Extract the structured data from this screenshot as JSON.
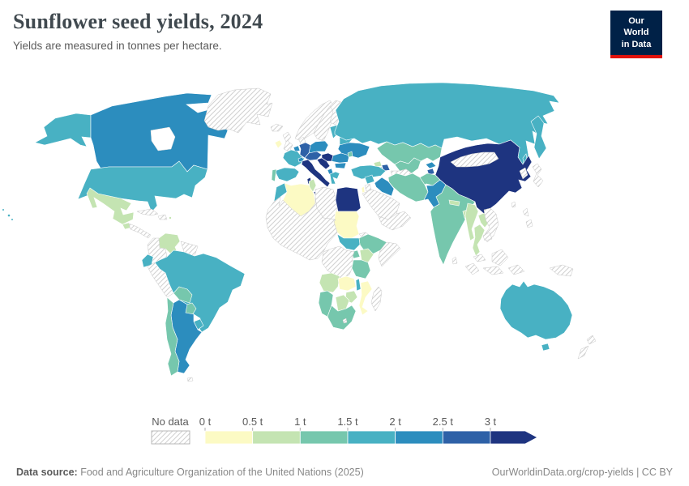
{
  "header": {
    "title": "Sunflower seed yields, 2024",
    "subtitle": "Yields are measured in tonnes per hectare.",
    "logo": {
      "line1": "Our World",
      "line2": "in Data",
      "bg_color": "#002147",
      "accent_color": "#e3120b"
    }
  },
  "legend": {
    "no_data_label": "No data",
    "tick_labels": [
      "0 t",
      "0.5 t",
      "1 t",
      "1.5 t",
      "2 t",
      "2.5 t",
      "3 t"
    ],
    "bin_colors": [
      "#fcfac4",
      "#c4e4b2",
      "#76c7ad",
      "#48b1c3",
      "#2c8dbe",
      "#2e61a7",
      "#1e3480"
    ],
    "hatch_line_color": "#d2d2d2"
  },
  "footer": {
    "source_label": "Data source:",
    "source_text": "Food and Agriculture Organization of the United Nations (2025)",
    "link_text": "OurWorldinData.org/crop-yields",
    "separator": "|",
    "license": "CC BY"
  },
  "chart_data": {
    "type": "choropleth_map",
    "title": "Sunflower seed yields, 2024",
    "year": 2024,
    "unit": "tonnes per hectare",
    "bin_ranges": [
      "0-0.5",
      "0.5-1",
      "1-1.5",
      "1.5-2",
      "2-2.5",
      "2.5-3",
      "3+"
    ],
    "countries": [
      {
        "id": "canada",
        "name": "Canada",
        "bin": "2-2.5"
      },
      {
        "id": "alaska",
        "name": "United States (Alaska)",
        "bin": "1.5-2"
      },
      {
        "id": "usa",
        "name": "United States",
        "bin": "1.5-2"
      },
      {
        "id": "hawaii",
        "name": "United States (Hawaii)",
        "bin": "1.5-2"
      },
      {
        "id": "greenland",
        "name": "Greenland",
        "bin": "no-data"
      },
      {
        "id": "mexico",
        "name": "Mexico",
        "bin": "0.5-1"
      },
      {
        "id": "guatemala",
        "name": "Guatemala",
        "bin": "0.5-1"
      },
      {
        "id": "central-america",
        "name": "Central America",
        "bin": "no-data"
      },
      {
        "id": "cuba",
        "name": "Cuba",
        "bin": "no-data"
      },
      {
        "id": "hispaniola",
        "name": "Hispaniola",
        "bin": "no-data"
      },
      {
        "id": "dominica",
        "name": "Dominica",
        "bin": "0.5-1"
      },
      {
        "id": "venezuela",
        "name": "Venezuela",
        "bin": "0.5-1"
      },
      {
        "id": "colombia",
        "name": "Colombia",
        "bin": "no-data"
      },
      {
        "id": "guyanas",
        "name": "Guyanas",
        "bin": "no-data"
      },
      {
        "id": "ecuador",
        "name": "Ecuador",
        "bin": "1.5-2"
      },
      {
        "id": "peru",
        "name": "Peru",
        "bin": "no-data"
      },
      {
        "id": "brazil",
        "name": "Brazil",
        "bin": "1.5-2"
      },
      {
        "id": "bolivia",
        "name": "Bolivia",
        "bin": "1-1.5"
      },
      {
        "id": "paraguay",
        "name": "Paraguay",
        "bin": "1-1.5"
      },
      {
        "id": "uruguay",
        "name": "Uruguay",
        "bin": "1.5-2"
      },
      {
        "id": "argentina",
        "name": "Argentina",
        "bin": "2-2.5"
      },
      {
        "id": "chile",
        "name": "Chile",
        "bin": "1-1.5"
      },
      {
        "id": "falkland-islands",
        "name": "Falkland Islands",
        "bin": "no-data"
      },
      {
        "id": "iceland",
        "name": "Iceland",
        "bin": "no-data"
      },
      {
        "id": "ireland",
        "name": "Ireland",
        "bin": "0-0.5"
      },
      {
        "id": "united-kingdom",
        "name": "United Kingdom",
        "bin": "no-data"
      },
      {
        "id": "norway",
        "name": "Norway",
        "bin": "no-data"
      },
      {
        "id": "sweden",
        "name": "Sweden",
        "bin": "no-data"
      },
      {
        "id": "finland",
        "name": "Finland",
        "bin": "no-data"
      },
      {
        "id": "denmark",
        "name": "Denmark",
        "bin": "no-data"
      },
      {
        "id": "baltics",
        "name": "Baltic states",
        "bin": "1.5-2"
      },
      {
        "id": "belarus",
        "name": "Belarus",
        "bin": "1.5-2"
      },
      {
        "id": "poland",
        "name": "Poland",
        "bin": "2-2.5"
      },
      {
        "id": "germany",
        "name": "Germany",
        "bin": "2.5-3"
      },
      {
        "id": "benelux",
        "name": "Belgium-Netherlands",
        "bin": "2-2.5"
      },
      {
        "id": "france",
        "name": "France",
        "bin": "1.5-2"
      },
      {
        "id": "switzerland",
        "name": "Switzerland",
        "bin": "2-2.5"
      },
      {
        "id": "austria-czech",
        "name": "Austria-Czechia",
        "bin": "2.5-3"
      },
      {
        "id": "hungary-serbia",
        "name": "Hungary-Serbia",
        "bin": "3+"
      },
      {
        "id": "croatia-bosnia",
        "name": "Croatia-Bosnia",
        "bin": "3+"
      },
      {
        "id": "albania-macedonia",
        "name": "Albania-North Macedonia",
        "bin": "2-2.5"
      },
      {
        "id": "greece",
        "name": "Greece",
        "bin": "1.5-2"
      },
      {
        "id": "italy",
        "name": "Italy",
        "bin": "3+"
      },
      {
        "id": "sicily",
        "name": "Italy (Sicily)",
        "bin": "3+"
      },
      {
        "id": "sardinia",
        "name": "Italy (Sardinia)",
        "bin": "3+"
      },
      {
        "id": "romania",
        "name": "Romania",
        "bin": "2-2.5"
      },
      {
        "id": "bulgaria",
        "name": "Bulgaria",
        "bin": "2-2.5"
      },
      {
        "id": "ukraine",
        "name": "Ukraine",
        "bin": "2-2.5"
      },
      {
        "id": "moldova",
        "name": "Moldova",
        "bin": "1-1.5"
      },
      {
        "id": "spain",
        "name": "Spain",
        "bin": "1.5-2"
      },
      {
        "id": "portugal",
        "name": "Portugal",
        "bin": "1-1.5"
      },
      {
        "id": "russia",
        "name": "Russia",
        "bin": "1.5-2"
      },
      {
        "id": "kamchatka",
        "name": "Russia (Kamchatka)",
        "bin": "1.5-2"
      },
      {
        "id": "sakhalin",
        "name": "Russia (Sakhalin)",
        "bin": "1.5-2"
      },
      {
        "id": "kazakhstan",
        "name": "Kazakhstan",
        "bin": "1-1.5"
      },
      {
        "id": "uzbekistan",
        "name": "Uzbekistan",
        "bin": "1-1.5"
      },
      {
        "id": "turkmenistan",
        "name": "Turkmenistan",
        "bin": "no-data"
      },
      {
        "id": "kyrgyzstan",
        "name": "Kyrgyzstan",
        "bin": "2-2.5"
      },
      {
        "id": "tajikistan",
        "name": "Tajikistan",
        "bin": "2.5-3"
      },
      {
        "id": "georgia",
        "name": "Georgia",
        "bin": "0.5-1"
      },
      {
        "id": "armenia",
        "name": "Armenia",
        "bin": "1-1.5"
      },
      {
        "id": "azerbaijan",
        "name": "Azerbaijan",
        "bin": "2.5-3"
      },
      {
        "id": "turkey",
        "name": "Turkey",
        "bin": "1.5-2"
      },
      {
        "id": "syria",
        "name": "Syria",
        "bin": "1.5-2"
      },
      {
        "id": "iraq",
        "name": "Iraq",
        "bin": "2-2.5"
      },
      {
        "id": "iran",
        "name": "Iran",
        "bin": "1-1.5"
      },
      {
        "id": "israel",
        "name": "Israel",
        "bin": "0-0.5"
      },
      {
        "id": "jordan",
        "name": "Jordan",
        "bin": "no-data"
      },
      {
        "id": "saudi-arabia",
        "name": "Saudi Arabia",
        "bin": "no-data"
      },
      {
        "id": "yemen-oman",
        "name": "Yemen-Oman",
        "bin": "no-data"
      },
      {
        "id": "afghanistan",
        "name": "Afghanistan",
        "bin": "1-1.5"
      },
      {
        "id": "pakistan",
        "name": "Pakistan",
        "bin": "2-2.5"
      },
      {
        "id": "india",
        "name": "India",
        "bin": "1-1.5"
      },
      {
        "id": "nepal",
        "name": "Nepal",
        "bin": "0.5-1"
      },
      {
        "id": "bangladesh",
        "name": "Bangladesh",
        "bin": "0.5-1"
      },
      {
        "id": "sri-lanka",
        "name": "Sri Lanka",
        "bin": "no-data"
      },
      {
        "id": "china",
        "name": "China",
        "bin": "3+"
      },
      {
        "id": "hainan",
        "name": "China (Hainan)",
        "bin": "3+"
      },
      {
        "id": "taiwan",
        "name": "Taiwan",
        "bin": "no-data"
      },
      {
        "id": "mongolia",
        "name": "Mongolia",
        "bin": "no-data"
      },
      {
        "id": "korea",
        "name": "Korea",
        "bin": "no-data"
      },
      {
        "id": "japan",
        "name": "Japan",
        "bin": "no-data"
      },
      {
        "id": "myanmar",
        "name": "Myanmar",
        "bin": "0.5-1"
      },
      {
        "id": "thailand",
        "name": "Thailand",
        "bin": "0.5-1"
      },
      {
        "id": "laos",
        "name": "Laos",
        "bin": "0.5-1"
      },
      {
        "id": "vietnam",
        "name": "Vietnam",
        "bin": "no-data"
      },
      {
        "id": "cambodia",
        "name": "Cambodia",
        "bin": "no-data"
      },
      {
        "id": "malaysia",
        "name": "Malaysia",
        "bin": "no-data"
      },
      {
        "id": "indonesia",
        "name": "Indonesia",
        "bin": "no-data"
      },
      {
        "id": "philippines",
        "name": "Philippines",
        "bin": "no-data"
      },
      {
        "id": "papua-new-guinea",
        "name": "Papua New Guinea",
        "bin": "no-data"
      },
      {
        "id": "australia",
        "name": "Australia",
        "bin": "1.5-2"
      },
      {
        "id": "tasmania",
        "name": "Australia (Tasmania)",
        "bin": "1.5-2"
      },
      {
        "id": "new-zealand",
        "name": "New Zealand",
        "bin": "no-data"
      },
      {
        "id": "morocco",
        "name": "Morocco",
        "bin": "1.5-2"
      },
      {
        "id": "algeria",
        "name": "Algeria",
        "bin": "0-0.5"
      },
      {
        "id": "tunisia",
        "name": "Tunisia",
        "bin": "0.5-1"
      },
      {
        "id": "libya",
        "name": "Libya",
        "bin": "no-data"
      },
      {
        "id": "egypt",
        "name": "Egypt",
        "bin": "3+"
      },
      {
        "id": "sudan",
        "name": "Sudan",
        "bin": "0-0.5"
      },
      {
        "id": "west-africa-sahel",
        "name": "West Africa / Sahel",
        "bin": "no-data"
      },
      {
        "id": "eritrea",
        "name": "Eritrea-Djibouti",
        "bin": "no-data"
      },
      {
        "id": "ethiopia",
        "name": "Ethiopia",
        "bin": "1-1.5"
      },
      {
        "id": "somalia",
        "name": "Somalia",
        "bin": "no-data"
      },
      {
        "id": "south-sudan",
        "name": "South Sudan",
        "bin": "1.5-2"
      },
      {
        "id": "uganda",
        "name": "Uganda",
        "bin": "1-1.5"
      },
      {
        "id": "kenya",
        "name": "Kenya",
        "bin": "0.5-1"
      },
      {
        "id": "drc",
        "name": "Democratic Republic of Congo",
        "bin": "no-data"
      },
      {
        "id": "tanzania",
        "name": "Tanzania",
        "bin": "1-1.5"
      },
      {
        "id": "angola",
        "name": "Angola",
        "bin": "0.5-1"
      },
      {
        "id": "zambia",
        "name": "Zambia",
        "bin": "0-0.5"
      },
      {
        "id": "malawi",
        "name": "Malawi",
        "bin": "1.5-2"
      },
      {
        "id": "mozambique",
        "name": "Mozambique",
        "bin": "0-0.5"
      },
      {
        "id": "zimbabwe",
        "name": "Zimbabwe",
        "bin": "0.5-1"
      },
      {
        "id": "botswana",
        "name": "Botswana",
        "bin": "0.5-1"
      },
      {
        "id": "namibia",
        "name": "Namibia",
        "bin": "1-1.5"
      },
      {
        "id": "south-africa",
        "name": "South Africa",
        "bin": "1-1.5"
      },
      {
        "id": "lesotho",
        "name": "Lesotho",
        "bin": "no-data"
      },
      {
        "id": "madagascar",
        "name": "Madagascar",
        "bin": "no-data"
      }
    ]
  }
}
